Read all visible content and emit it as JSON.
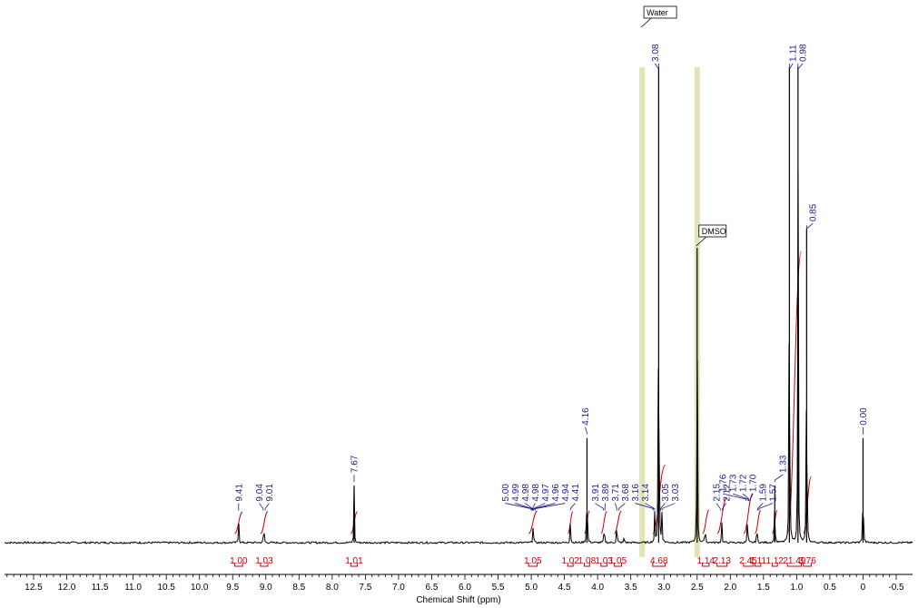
{
  "chart_data": {
    "type": "line",
    "xlabel": "Chemical Shift (ppm)",
    "xlim": [
      12.9,
      -0.55
    ],
    "x_reversed": true,
    "ticks": [
      12.5,
      12.0,
      11.5,
      11.0,
      10.5,
      10.0,
      9.5,
      9.0,
      8.5,
      8.0,
      7.5,
      7.0,
      6.5,
      6.0,
      5.5,
      5.0,
      4.5,
      4.0,
      3.5,
      3.0,
      2.5,
      2.0,
      1.5,
      1.0,
      0.5,
      0,
      -0.5
    ],
    "tick_labels": [
      "12.5",
      "12.0",
      "11.5",
      "11.0",
      "10.5",
      "10.0",
      "9.5",
      "9.0",
      "8.5",
      "8.0",
      "7.5",
      "7.0",
      "6.5",
      "6.0",
      "5.5",
      "5.0",
      "4.5",
      "4.0",
      "3.5",
      "3.0",
      "2.5",
      "2.0",
      "1.5",
      "1.0",
      "0.5",
      "0",
      "-0.5"
    ],
    "peaks": [
      {
        "ppm": 9.41,
        "label": "9.41",
        "rel": 0.06
      },
      {
        "ppm": 9.03,
        "label": "",
        "rel": 0.06
      },
      {
        "ppm": 7.67,
        "label": "7.67",
        "rel": 0.12
      },
      {
        "ppm": 4.97,
        "label": "",
        "rel": 0.06
      },
      {
        "ppm": 4.41,
        "label": "4.41",
        "rel": 0.06
      },
      {
        "ppm": 4.16,
        "label": "4.16",
        "rel": 0.22
      },
      {
        "ppm": 3.9,
        "label": "",
        "rel": 0.06
      },
      {
        "ppm": 3.71,
        "label": "3.71",
        "rel": 0.06
      },
      {
        "ppm": 3.6,
        "label": "",
        "rel": 0.02
      },
      {
        "ppm": 3.14,
        "label": "3.14",
        "rel": 0.06
      },
      {
        "ppm": 3.08,
        "label": "3.08",
        "rel": 1.0
      },
      {
        "ppm": 3.03,
        "label": "",
        "rel": 0.06
      },
      {
        "ppm": 2.5,
        "label": "",
        "rel": 0.62
      },
      {
        "ppm": 2.38,
        "label": "",
        "rel": 0.06
      },
      {
        "ppm": 2.13,
        "label": "",
        "rel": 0.06
      },
      {
        "ppm": 1.74,
        "label": "",
        "rel": 0.08
      },
      {
        "ppm": 1.6,
        "label": "",
        "rel": 0.06
      },
      {
        "ppm": 1.33,
        "label": "1.33",
        "rel": 0.12
      },
      {
        "ppm": 1.11,
        "label": "1.11",
        "rel": 1.0
      },
      {
        "ppm": 0.98,
        "label": "0.98",
        "rel": 1.0
      },
      {
        "ppm": 0.85,
        "label": "0.85",
        "rel": 0.66
      },
      {
        "ppm": 0.0,
        "label": "0.00",
        "rel": 0.22
      }
    ],
    "peak_labels": [
      {
        "text": "9.41",
        "ppm": 9.41
      },
      {
        "text": "9.04",
        "ppm": 9.04
      },
      {
        "text": "9.01",
        "ppm": 9.01
      },
      {
        "text": "7.67",
        "ppm": 7.67
      },
      {
        "text": "5.00",
        "ppm": 5.0
      },
      {
        "text": "4.99",
        "ppm": 4.99
      },
      {
        "text": "4.98",
        "ppm": 4.98
      },
      {
        "text": "4.98",
        "ppm": 4.98
      },
      {
        "text": "4.97",
        "ppm": 4.97
      },
      {
        "text": "4.96",
        "ppm": 4.96
      },
      {
        "text": "4.94",
        "ppm": 4.94
      },
      {
        "text": "4.41",
        "ppm": 4.41
      },
      {
        "text": "4.16",
        "ppm": 4.16
      },
      {
        "text": "3.91",
        "ppm": 3.91
      },
      {
        "text": "3.89",
        "ppm": 3.89
      },
      {
        "text": "3.71",
        "ppm": 3.71
      },
      {
        "text": "3.68",
        "ppm": 3.68
      },
      {
        "text": "3.16",
        "ppm": 3.16
      },
      {
        "text": "3.14",
        "ppm": 3.14
      },
      {
        "text": "3.08",
        "ppm": 3.08
      },
      {
        "text": "3.05",
        "ppm": 3.05
      },
      {
        "text": "3.03",
        "ppm": 3.03
      },
      {
        "text": "2.15",
        "ppm": 2.15
      },
      {
        "text": "2.12",
        "ppm": 2.12
      },
      {
        "text": "1.76",
        "ppm": 1.76
      },
      {
        "text": "1.73",
        "ppm": 1.73
      },
      {
        "text": "1.72",
        "ppm": 1.72
      },
      {
        "text": "1.70",
        "ppm": 1.7
      },
      {
        "text": "1.59",
        "ppm": 1.59
      },
      {
        "text": "1.57",
        "ppm": 1.57
      },
      {
        "text": "1.33",
        "ppm": 1.33
      },
      {
        "text": "1.11",
        "ppm": 1.11
      },
      {
        "text": "0.98",
        "ppm": 0.98
      },
      {
        "text": "0.85",
        "ppm": 0.85
      },
      {
        "text": "0.00",
        "ppm": 0.0
      }
    ],
    "integrals": [
      {
        "value": "1.00",
        "from": 9.47,
        "to": 9.35
      },
      {
        "value": "1.03",
        "from": 9.08,
        "to": 8.97
      },
      {
        "value": "1.01",
        "from": 7.72,
        "to": 7.62
      },
      {
        "value": "1.05",
        "from": 5.04,
        "to": 4.91
      },
      {
        "value": "1.02",
        "from": 4.45,
        "to": 4.37
      },
      {
        "value": "1.08",
        "from": 4.2,
        "to": 4.12
      },
      {
        "value": "1.03",
        "from": 3.95,
        "to": 3.86
      },
      {
        "value": "1.05",
        "from": 3.75,
        "to": 3.64
      },
      {
        "value": "4.68",
        "from": 3.17,
        "to": 2.98
      },
      {
        "value": "1.14",
        "from": 2.42,
        "to": 2.32
      },
      {
        "value": "2.13",
        "from": 2.2,
        "to": 2.05
      },
      {
        "value": "2.45",
        "from": 1.8,
        "to": 1.66
      },
      {
        "value": "1.11",
        "from": 1.63,
        "to": 1.54
      },
      {
        "value": "1.12",
        "from": 1.37,
        "to": 1.29
      },
      {
        "value": "21.49",
        "from": 1.14,
        "to": 0.93
      },
      {
        "value": "3.76",
        "from": 0.9,
        "to": 0.78
      }
    ],
    "annotations": [
      {
        "text": "Water",
        "ppm": 3.33
      },
      {
        "text": "DMSO",
        "ppm": 2.5
      }
    ],
    "highlight_bands_ppm": [
      3.33,
      2.5
    ],
    "colors": {
      "spectrum": "#000000",
      "peak_labels": "#1a1a8c",
      "integrals": "#cc0000",
      "highlight": "#d9d9a0",
      "axis": "#000000"
    }
  }
}
